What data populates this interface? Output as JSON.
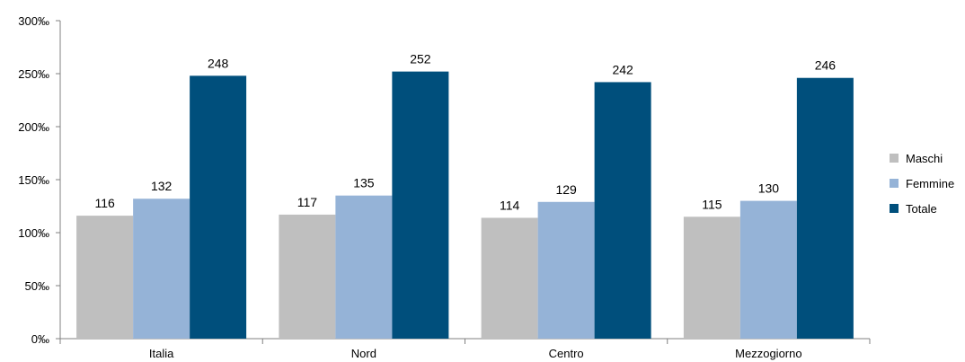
{
  "chart_data": {
    "type": "bar",
    "categories": [
      "Italia",
      "Nord",
      "Centro",
      "Mezzogiorno"
    ],
    "series": [
      {
        "name": "Maschi",
        "values": [
          116,
          117,
          114,
          115
        ],
        "color": "#bfbfbf"
      },
      {
        "name": "Femmine",
        "values": [
          132,
          135,
          129,
          130
        ],
        "color": "#95b3d7"
      },
      {
        "name": "Totale",
        "values": [
          248,
          252,
          242,
          246
        ],
        "color": "#004f7c"
      }
    ],
    "y_ticks": [
      0,
      50,
      100,
      150,
      200,
      250,
      300
    ],
    "y_tick_labels": [
      "0‰",
      "50‰",
      "100‰",
      "150‰",
      "200‰",
      "250‰",
      "300‰"
    ],
    "ylim": [
      0,
      300
    ],
    "grid": false,
    "legend_position": "right"
  }
}
